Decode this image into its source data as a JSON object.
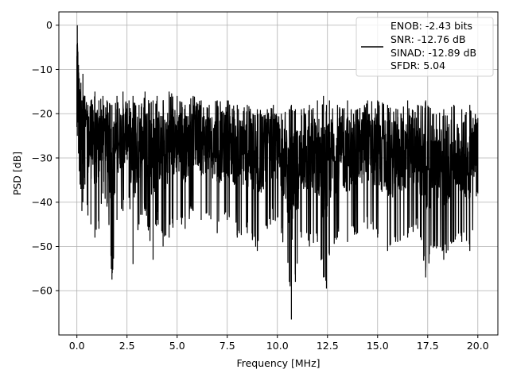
{
  "chart_data": {
    "type": "line",
    "title": "",
    "xlabel": "Frequency [MHz]",
    "ylabel": "PSD [dB]",
    "xlim": [
      -0.9,
      21.0
    ],
    "ylim": [
      -70,
      3
    ],
    "x_ticks": [
      0.0,
      2.5,
      5.0,
      7.5,
      10.0,
      12.5,
      15.0,
      17.5,
      20.0
    ],
    "x_tick_labels": [
      "0.0",
      "2.5",
      "5.0",
      "7.5",
      "10.0",
      "12.5",
      "15.0",
      "17.5",
      "20.0"
    ],
    "y_ticks": [
      0,
      -10,
      -20,
      -30,
      -40,
      -50,
      -60
    ],
    "y_tick_labels": [
      "0",
      "−10",
      "−20",
      "−30",
      "−40",
      "−50",
      "−60"
    ],
    "grid": true,
    "line_color": "#000000",
    "legend": {
      "placement": "upper-right",
      "entries": [
        "ENOB: -2.43 bits",
        "SNR: -12.76 dB",
        "SINAD: -12.89 dB",
        "SFDR: 5.04"
      ]
    },
    "series": [
      {
        "x": [
          0.0,
          0.02,
          0.05,
          0.08,
          0.12,
          0.16,
          0.2,
          0.25,
          0.3,
          0.4,
          0.55,
          0.7,
          0.9,
          1.1,
          1.3,
          1.5,
          1.75,
          2.0,
          2.3,
          2.6,
          2.8,
          3.1,
          3.4,
          3.8,
          4.0,
          4.3,
          4.6,
          5.0,
          5.4,
          5.8,
          6.2,
          6.6,
          7.0,
          7.5,
          8.0,
          8.5,
          9.0,
          9.5,
          9.8,
          10.2,
          10.6,
          10.7,
          10.9,
          11.2,
          11.6,
          12.0,
          12.3,
          12.45,
          12.6,
          13.0,
          13.5,
          14.0,
          14.5,
          15.0,
          15.5,
          16.0,
          16.5,
          17.0,
          17.4,
          17.8,
          18.3,
          18.8,
          19.2,
          19.6,
          20.0
        ],
        "y_max": [
          -7,
          0,
          -6,
          -9,
          -12,
          -15,
          -13,
          -17,
          -11,
          -16,
          -18,
          -17,
          -15,
          -17,
          -16,
          -17,
          -18,
          -16,
          -15,
          -17,
          -16,
          -18,
          -15,
          -17,
          -16,
          -17,
          -15,
          -16,
          -18,
          -16,
          -17,
          -18,
          -17,
          -17,
          -18,
          -18,
          -19,
          -19,
          -18,
          -20,
          -19,
          -18,
          -19,
          -19,
          -18,
          -17,
          -16,
          -18,
          -17,
          -18,
          -17,
          -19,
          -17,
          -17,
          -18,
          -19,
          -17,
          -18,
          -17,
          -20,
          -19,
          -18,
          -19,
          -18,
          -21
        ],
        "y_min": [
          -23,
          -25,
          -22,
          -29,
          -33,
          -36,
          -37,
          -42,
          -40,
          -36,
          -43,
          -45,
          -48,
          -46,
          -38,
          -41,
          -57.5,
          -44,
          -42,
          -39,
          -54,
          -45,
          -42,
          -53,
          -44,
          -50,
          -48,
          -44,
          -46,
          -42,
          -44,
          -43,
          -47,
          -44,
          -48,
          -47,
          -51,
          -46,
          -44,
          -47,
          -58,
          -66.5,
          -58,
          -48,
          -50,
          -49,
          -57,
          -59.5,
          -52,
          -48,
          -49,
          -47,
          -46,
          -48,
          -51,
          -49,
          -48,
          -46,
          -57,
          -50,
          -53,
          -49,
          -49,
          -51,
          -38
        ]
      }
    ]
  }
}
